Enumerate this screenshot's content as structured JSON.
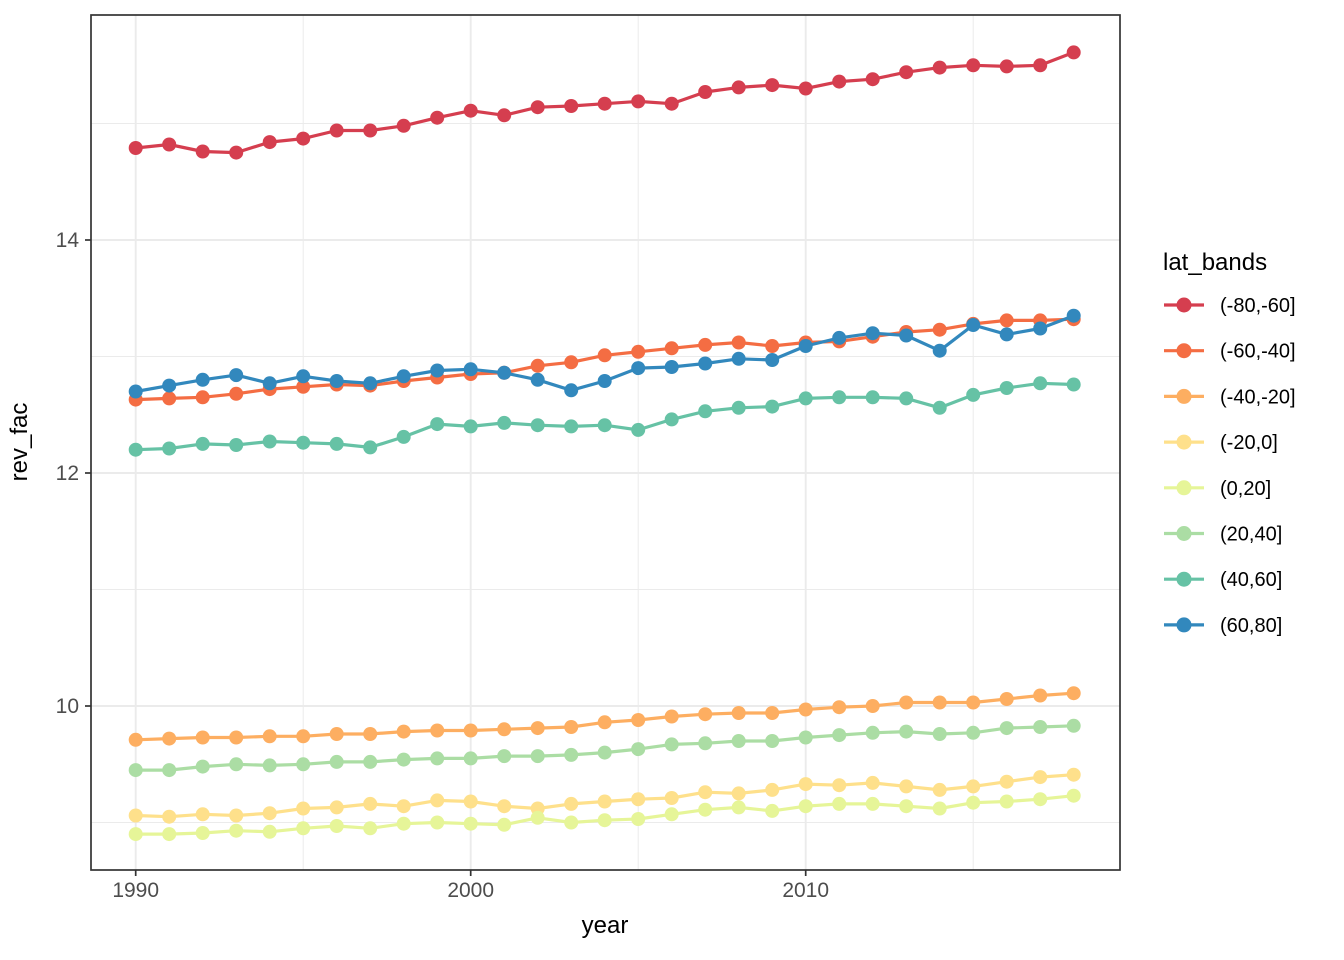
{
  "chart_data": {
    "type": "line",
    "title": "",
    "xlabel": "year",
    "ylabel": "rev_fac",
    "legend_title": "lat_bands",
    "legend_position": "right",
    "grid": true,
    "panel_background": "#ffffff",
    "grid_color": "#ebebeb",
    "panel_border_color": "#333333",
    "tick_color": "#333333",
    "tick_label_color": "#4d4d4d",
    "x_ticks": [
      1990,
      2000,
      2010
    ],
    "x_minor_ticks": [
      1995,
      2005,
      2015
    ],
    "y_ticks": [
      10,
      12,
      14
    ],
    "y_minor_ticks": [
      9,
      11,
      13,
      15
    ],
    "x_range": [
      1988.7,
      2019.4
    ],
    "y_range": [
      8.59,
      15.93
    ],
    "x": [
      1990,
      1991,
      1992,
      1993,
      1994,
      1995,
      1996,
      1997,
      1998,
      1999,
      2000,
      2001,
      2002,
      2003,
      2004,
      2005,
      2006,
      2007,
      2008,
      2009,
      2010,
      2011,
      2012,
      2013,
      2014,
      2015,
      2016,
      2017,
      2018
    ],
    "series": [
      {
        "name": "(-80,-60]",
        "color": "#d53e4f",
        "values": [
          14.79,
          14.82,
          14.76,
          14.75,
          14.84,
          14.87,
          14.94,
          14.94,
          14.98,
          15.05,
          15.11,
          15.07,
          15.14,
          15.15,
          15.17,
          15.19,
          15.17,
          15.27,
          15.31,
          15.33,
          15.3,
          15.36,
          15.38,
          15.44,
          15.48,
          15.5,
          15.49,
          15.5,
          15.61
        ]
      },
      {
        "name": "(-60,-40]",
        "color": "#f46d43",
        "values": [
          12.63,
          12.64,
          12.65,
          12.68,
          12.72,
          12.74,
          12.76,
          12.75,
          12.79,
          12.82,
          12.85,
          12.86,
          12.92,
          12.95,
          13.01,
          13.04,
          13.07,
          13.1,
          13.12,
          13.09,
          13.12,
          13.13,
          13.17,
          13.21,
          13.23,
          13.28,
          13.31,
          13.31,
          13.32
        ]
      },
      {
        "name": "(-40,-20]",
        "color": "#fdae61",
        "values": [
          9.71,
          9.72,
          9.73,
          9.73,
          9.74,
          9.74,
          9.76,
          9.76,
          9.78,
          9.79,
          9.79,
          9.8,
          9.81,
          9.82,
          9.86,
          9.88,
          9.91,
          9.93,
          9.94,
          9.94,
          9.97,
          9.99,
          10.0,
          10.03,
          10.03,
          10.03,
          10.06,
          10.09,
          10.11
        ]
      },
      {
        "name": "(-20,0]",
        "color": "#fee08b",
        "values": [
          9.06,
          9.05,
          9.07,
          9.06,
          9.08,
          9.12,
          9.13,
          9.16,
          9.14,
          9.19,
          9.18,
          9.14,
          9.12,
          9.16,
          9.18,
          9.2,
          9.21,
          9.26,
          9.25,
          9.28,
          9.33,
          9.32,
          9.34,
          9.31,
          9.28,
          9.31,
          9.35,
          9.39,
          9.41
        ]
      },
      {
        "name": "(0,20]",
        "color": "#e6f598",
        "values": [
          8.9,
          8.9,
          8.91,
          8.93,
          8.92,
          8.95,
          8.97,
          8.95,
          8.99,
          9.0,
          8.99,
          8.98,
          9.04,
          9.0,
          9.02,
          9.03,
          9.07,
          9.11,
          9.13,
          9.1,
          9.14,
          9.16,
          9.16,
          9.14,
          9.12,
          9.17,
          9.18,
          9.2,
          9.23
        ]
      },
      {
        "name": "(20,40]",
        "color": "#abdda4",
        "values": [
          9.45,
          9.45,
          9.48,
          9.5,
          9.49,
          9.5,
          9.52,
          9.52,
          9.54,
          9.55,
          9.55,
          9.57,
          9.57,
          9.58,
          9.6,
          9.63,
          9.67,
          9.68,
          9.7,
          9.7,
          9.73,
          9.75,
          9.77,
          9.78,
          9.76,
          9.77,
          9.81,
          9.82,
          9.83
        ]
      },
      {
        "name": "(40,60]",
        "color": "#66c2a5",
        "values": [
          12.2,
          12.21,
          12.25,
          12.24,
          12.27,
          12.26,
          12.25,
          12.22,
          12.31,
          12.42,
          12.4,
          12.43,
          12.41,
          12.4,
          12.41,
          12.37,
          12.46,
          12.53,
          12.56,
          12.57,
          12.64,
          12.65,
          12.65,
          12.64,
          12.56,
          12.67,
          12.73,
          12.77,
          12.76
        ]
      },
      {
        "name": "(60,80]",
        "color": "#3288bd",
        "values": [
          12.7,
          12.75,
          12.8,
          12.84,
          12.77,
          12.83,
          12.79,
          12.77,
          12.83,
          12.88,
          12.89,
          12.86,
          12.8,
          12.71,
          12.79,
          12.9,
          12.91,
          12.94,
          12.98,
          12.97,
          13.09,
          13.16,
          13.2,
          13.18,
          13.05,
          13.27,
          13.19,
          13.24,
          13.35
        ]
      }
    ]
  }
}
